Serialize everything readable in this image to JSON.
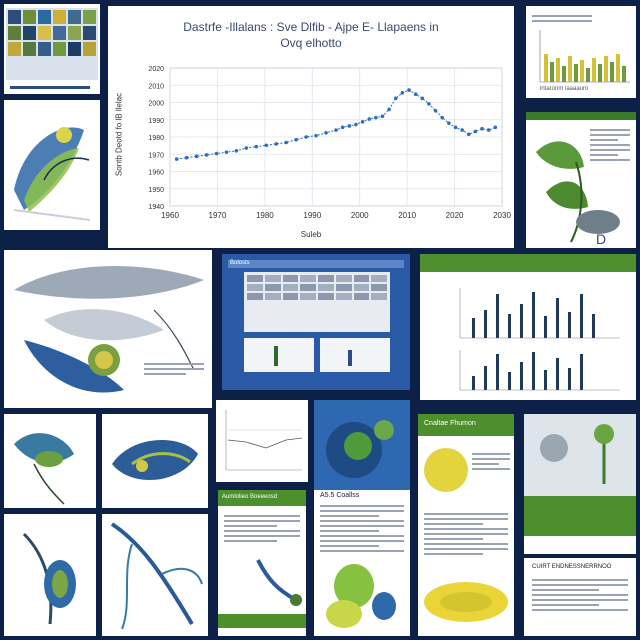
{
  "main_chart": {
    "title_line1": "Dastrfe  -Illalans : Sve Dlfib - Ajpe E- Llapaens in",
    "title_line2": "Ovq elhotto",
    "xlabel": "Suleb",
    "ylabel": "Sontb Deotd fo lB llelac",
    "chart_data": {
      "type": "line",
      "title": "Dastrfe  -Illalans : Sve Dlfib - Ajpe E- Llapaens in Ovq elhotto",
      "xlabel": "Suleb",
      "ylabel": "Sontb Deotd fo lB llelac",
      "x_tick_labels": [
        "1960",
        "1970",
        "1980",
        "1990",
        "2000",
        "2010",
        "2020",
        "2030"
      ],
      "y_tick_labels": [
        "2020",
        "2010",
        "2000",
        "1990",
        "1980",
        "1970",
        "1960",
        "1950",
        "1940"
      ],
      "xlim": [
        0,
        100
      ],
      "ylim": [
        0,
        100
      ],
      "grid": true,
      "series": [
        {
          "x": [
            2,
            5,
            8,
            11,
            14,
            17,
            20,
            23,
            26,
            29,
            32,
            35,
            38,
            41,
            44,
            47,
            50,
            52,
            54,
            56,
            58,
            60,
            62,
            64,
            66,
            68,
            70,
            72,
            74,
            76,
            78,
            80,
            82,
            84,
            86,
            88,
            90,
            92,
            94,
            96,
            98
          ],
          "y": [
            34,
            35,
            36,
            37,
            38,
            39,
            40,
            42,
            43,
            44,
            45,
            46,
            48,
            50,
            51,
            53,
            55,
            57,
            58,
            59,
            61,
            63,
            64,
            65,
            70,
            78,
            82,
            84,
            81,
            78,
            74,
            69,
            64,
            60,
            57,
            55,
            52,
            54,
            56,
            55,
            57
          ]
        }
      ]
    }
  },
  "panels": {
    "mini_chart_caption": "lntarorim laaaauro",
    "slide_title": "Bolosts",
    "poster_heading": "Aumlolieo Boeeeosd",
    "book_title": "A5.5 Coallss",
    "doc_heading": "Cnaltae Fhumon",
    "footer_text": "CUIRT ENDNESSNERRNOO"
  }
}
